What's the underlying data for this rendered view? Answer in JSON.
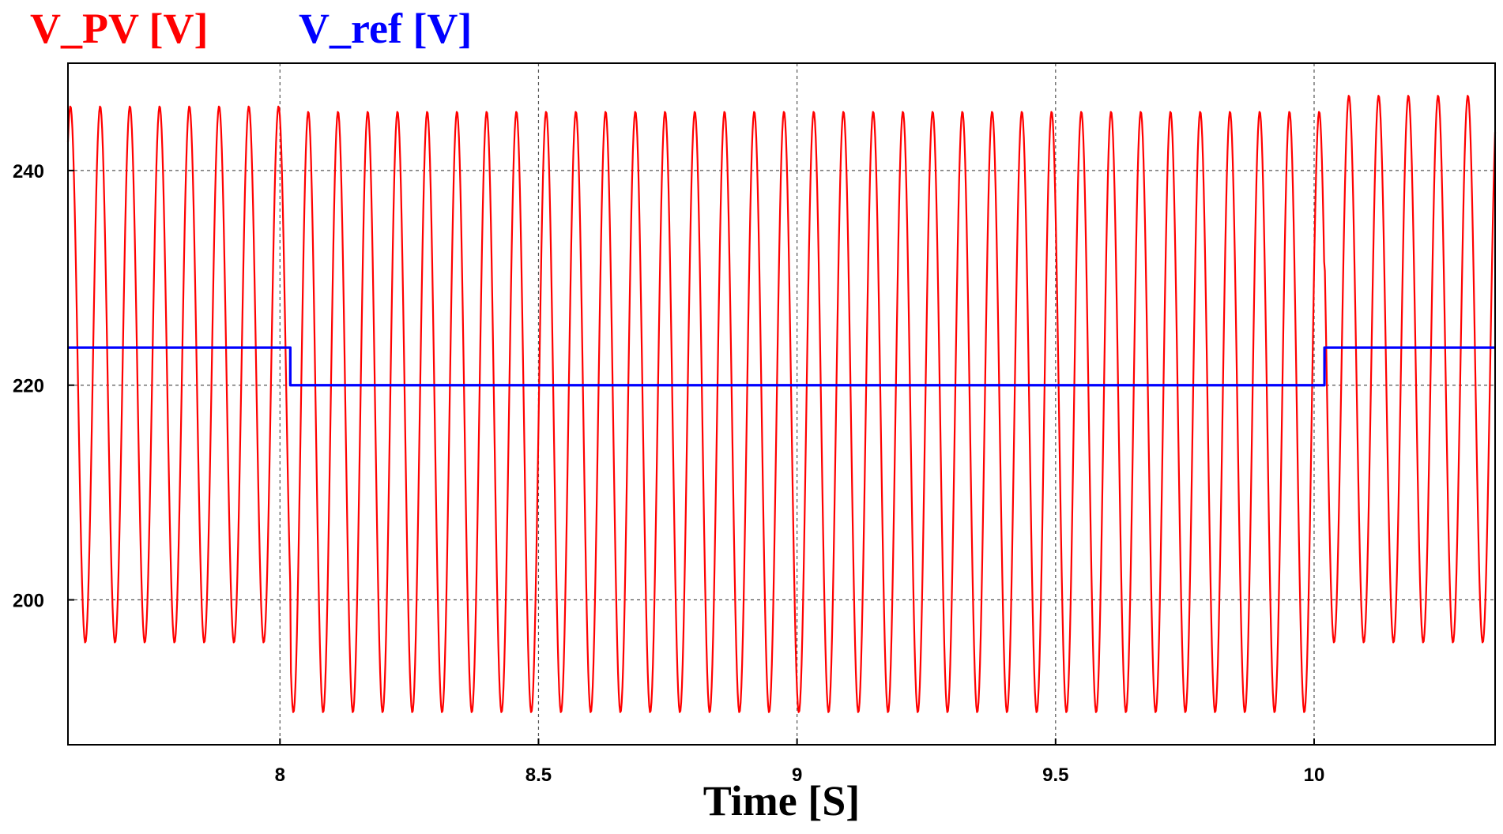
{
  "chart_data": {
    "type": "line",
    "xlabel": "Time [S]",
    "ylabel": "",
    "xlim": [
      7.59,
      10.35
    ],
    "ylim": [
      186.5,
      250
    ],
    "x_ticks": [
      8,
      8.5,
      9,
      9.5,
      10
    ],
    "x_tick_labels": [
      "8",
      "8.5",
      "9",
      "9.5",
      "10"
    ],
    "y_ticks": [
      200,
      220,
      240
    ],
    "y_tick_labels": [
      "200",
      "220",
      "240"
    ],
    "grid": true,
    "legend_position": "top-left",
    "series": [
      {
        "name": "V_PV [V]",
        "color": "#ff0000",
        "oscillation_period_s": 0.0575,
        "segments": [
          {
            "t_start": 7.59,
            "t_end": 8.02,
            "max": 246,
            "min": 196
          },
          {
            "t_start": 8.02,
            "t_end": 10.02,
            "max": 245.5,
            "min": 189.5
          },
          {
            "t_start": 10.02,
            "t_end": 10.35,
            "max": 247,
            "min": 196
          }
        ]
      },
      {
        "name": "V_ref [V]",
        "color": "#0000ff",
        "x": [
          7.59,
          8.02,
          8.02,
          10.02,
          10.02,
          10.35
        ],
        "values": [
          223.5,
          223.5,
          220,
          220,
          223.5,
          223.5
        ]
      }
    ]
  }
}
